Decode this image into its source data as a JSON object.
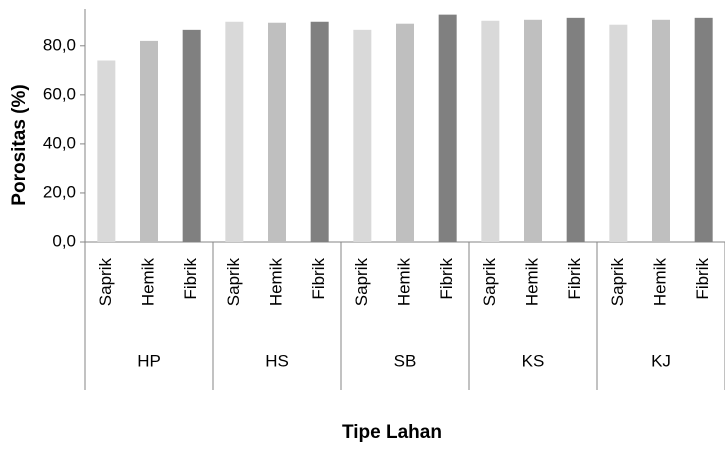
{
  "chart_data": {
    "type": "bar",
    "y_label": "Porositas (%)",
    "x_label": "Tipe Lahan",
    "categories": [
      "HP",
      "HS",
      "SB",
      "KS",
      "KJ"
    ],
    "series": [
      {
        "name": "Saprik",
        "color": "#d9d9d9",
        "values": [
          74,
          89.8,
          86.5,
          90.2,
          88.6
        ]
      },
      {
        "name": "Hemik",
        "color": "#bfbfbf",
        "values": [
          82,
          89.4,
          89,
          90.6,
          90.6
        ]
      },
      {
        "name": "Fibrik",
        "color": "#808080",
        "values": [
          86.5,
          89.8,
          92.7,
          91.4,
          91.4
        ]
      }
    ],
    "ylim": [
      0,
      95
    ],
    "yticks": [
      {
        "value": 0,
        "label": "0,0"
      },
      {
        "value": 20,
        "label": "20,0"
      },
      {
        "value": 40,
        "label": "40,0"
      },
      {
        "value": 60,
        "label": "60,0"
      },
      {
        "value": 80,
        "label": "80,0"
      }
    ]
  }
}
